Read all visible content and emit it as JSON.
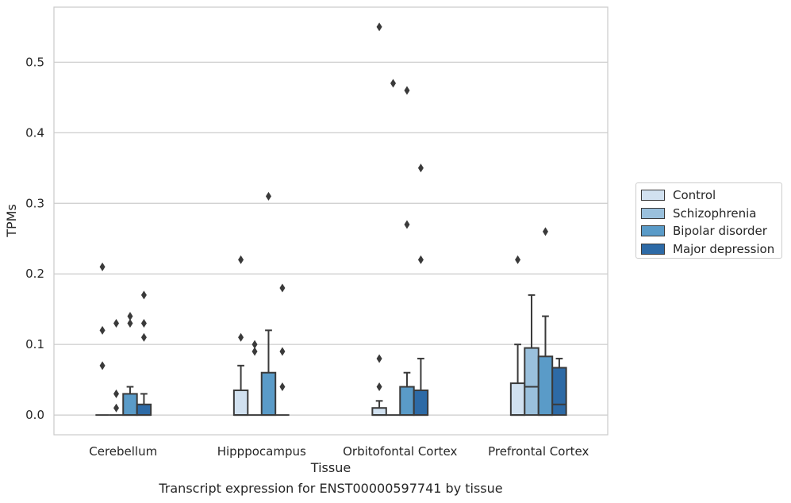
{
  "chart_data": {
    "type": "box",
    "title": "",
    "caption": "Transcript expression for ENST00000597741 by tissue",
    "xlabel": "Tissue",
    "ylabel": "TPMs",
    "ylim": [
      -0.028,
      0.578
    ],
    "yticks": [
      0.0,
      0.1,
      0.2,
      0.3,
      0.4,
      0.5
    ],
    "ytick_labels": [
      "0.0",
      "0.1",
      "0.2",
      "0.3",
      "0.4",
      "0.5"
    ],
    "grid": "horizontal",
    "legend_position": "right",
    "categories": [
      "Cerebellum",
      "Hipppocampus",
      "Orbitofontal Cortex",
      "Prefrontal Cortex"
    ],
    "series": [
      {
        "name": "Control",
        "color": "#d1e1f0",
        "boxes": [
          {
            "q1": 0,
            "median": 0,
            "q3": 0,
            "whisker_low": 0,
            "whisker_high": 0,
            "outliers": [
              0.21,
              0.12,
              0.07
            ]
          },
          {
            "q1": 0,
            "median": 0,
            "q3": 0.035,
            "whisker_low": 0,
            "whisker_high": 0.07,
            "outliers": [
              0.22,
              0.11
            ]
          },
          {
            "q1": 0,
            "median": 0,
            "q3": 0.01,
            "whisker_low": 0,
            "whisker_high": 0.02,
            "outliers": [
              0.55,
              0.08,
              0.04
            ]
          },
          {
            "q1": 0,
            "median": 0,
            "q3": 0.045,
            "whisker_low": 0,
            "whisker_high": 0.1,
            "outliers": [
              0.22
            ]
          }
        ]
      },
      {
        "name": "Schizophrenia",
        "color": "#9ac0dc",
        "boxes": [
          {
            "q1": 0,
            "median": 0,
            "q3": 0,
            "whisker_low": 0,
            "whisker_high": 0,
            "outliers": [
              0.13,
              0.03,
              0.01
            ]
          },
          {
            "q1": 0,
            "median": 0,
            "q3": 0,
            "whisker_low": 0,
            "whisker_high": 0,
            "outliers": [
              0.1,
              0.09
            ]
          },
          {
            "q1": 0,
            "median": 0,
            "q3": 0,
            "whisker_low": 0,
            "whisker_high": 0,
            "outliers": [
              0.47
            ]
          },
          {
            "q1": 0,
            "median": 0.04,
            "q3": 0.095,
            "whisker_low": 0,
            "whisker_high": 0.17,
            "outliers": []
          }
        ]
      },
      {
        "name": "Bipolar disorder",
        "color": "#5a9bc8",
        "boxes": [
          {
            "q1": 0,
            "median": 0,
            "q3": 0.03,
            "whisker_low": 0,
            "whisker_high": 0.04,
            "outliers": [
              0.14,
              0.13
            ]
          },
          {
            "q1": 0,
            "median": 0,
            "q3": 0.06,
            "whisker_low": 0,
            "whisker_high": 0.12,
            "outliers": [
              0.31
            ]
          },
          {
            "q1": 0,
            "median": 0,
            "q3": 0.04,
            "whisker_low": 0,
            "whisker_high": 0.06,
            "outliers": [
              0.46,
              0.27
            ]
          },
          {
            "q1": 0,
            "median": 0,
            "q3": 0.083,
            "whisker_low": 0,
            "whisker_high": 0.14,
            "outliers": [
              0.26
            ]
          }
        ]
      },
      {
        "name": "Major depression",
        "color": "#2d6aa6",
        "boxes": [
          {
            "q1": 0,
            "median": 0,
            "q3": 0.015,
            "whisker_low": 0,
            "whisker_high": 0.03,
            "outliers": [
              0.17,
              0.13,
              0.11
            ]
          },
          {
            "q1": 0,
            "median": 0,
            "q3": 0,
            "whisker_low": 0,
            "whisker_high": 0,
            "outliers": [
              0.18,
              0.09,
              0.04
            ]
          },
          {
            "q1": 0,
            "median": 0,
            "q3": 0.035,
            "whisker_low": 0,
            "whisker_high": 0.08,
            "outliers": [
              0.35,
              0.22
            ]
          },
          {
            "q1": 0,
            "median": 0.015,
            "q3": 0.067,
            "whisker_low": 0,
            "whisker_high": 0.08,
            "outliers": []
          }
        ]
      }
    ]
  }
}
